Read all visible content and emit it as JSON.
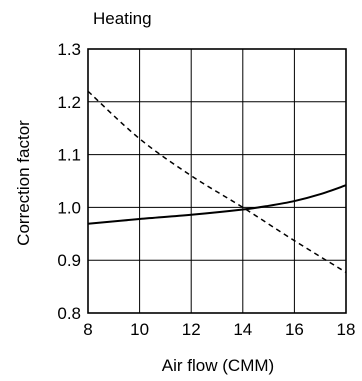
{
  "chart_data": {
    "type": "line",
    "title": "Heating",
    "xlabel": "Air flow (CMM)",
    "ylabel": "Correction factor",
    "xlim": [
      8,
      18
    ],
    "ylim": [
      0.8,
      1.3
    ],
    "x_ticks": [
      "8",
      "10",
      "12",
      "14",
      "16",
      "18"
    ],
    "y_ticks": [
      "0.8",
      "0.9",
      "1.0",
      "1.1",
      "1.2",
      "1.3"
    ],
    "grid": true,
    "series": [
      {
        "style": "solid",
        "color": "#000000",
        "points": [
          [
            8,
            0.969
          ],
          [
            10,
            0.978
          ],
          [
            12,
            0.986
          ],
          [
            14,
            0.996
          ],
          [
            15,
            1.003
          ],
          [
            16,
            1.012
          ],
          [
            17,
            1.025
          ],
          [
            18,
            1.042
          ]
        ]
      },
      {
        "style": "dashed",
        "color": "#000000",
        "points": [
          [
            8,
            1.22
          ],
          [
            10,
            1.13
          ],
          [
            12,
            1.06
          ],
          [
            14,
            1.0
          ],
          [
            16,
            0.937
          ],
          [
            18,
            0.877
          ]
        ]
      }
    ]
  }
}
